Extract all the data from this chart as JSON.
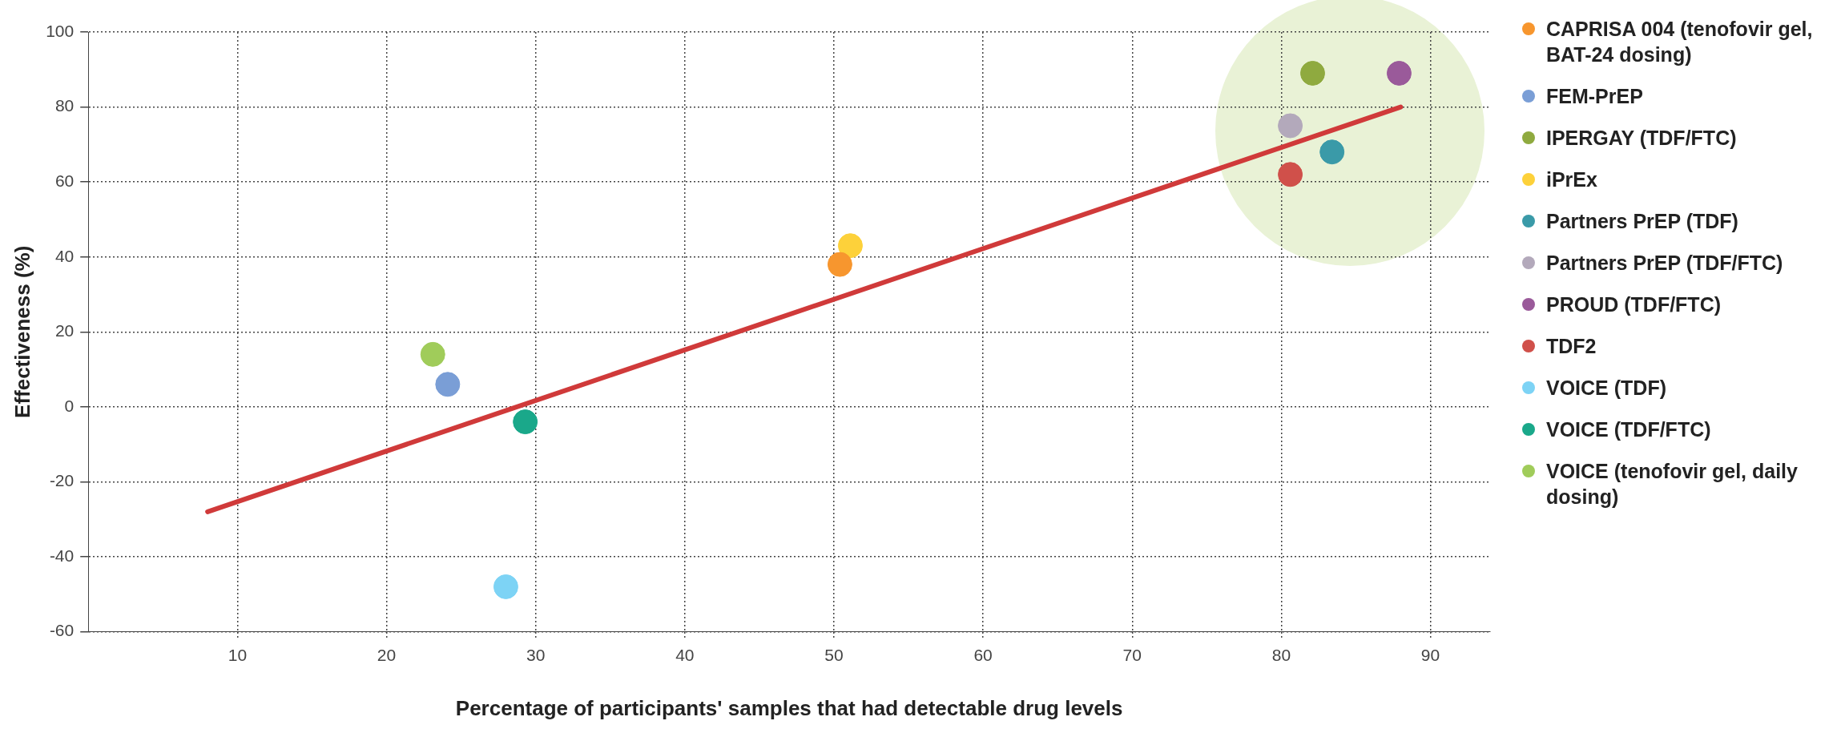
{
  "chart_data": {
    "type": "scatter",
    "xlabel": "Percentage of participants' samples that had detectable drug levels",
    "ylabel": "Effectiveness (%)",
    "xlim": [
      0,
      94
    ],
    "ylim": [
      -60,
      100
    ],
    "xticks": [
      10,
      20,
      30,
      40,
      50,
      60,
      70,
      80,
      90
    ],
    "yticks": [
      -60,
      -40,
      -20,
      0,
      20,
      40,
      60,
      80,
      100
    ],
    "grid": true,
    "legend": "right",
    "marker": "circle",
    "series": [
      {
        "type": "line",
        "marker": "none",
        "color": "#d03a3a",
        "x": [
          8,
          88
        ],
        "values": [
          -28,
          80
        ]
      },
      {
        "name": "CAPRISA 004 (tenofovir gel, BAT-24 dosing)",
        "color": "#f7962e",
        "x": [
          50.4
        ],
        "values": [
          38
        ]
      },
      {
        "name": "FEM-PrEP",
        "color": "#7a9ed6",
        "x": [
          24.1
        ],
        "values": [
          6
        ]
      },
      {
        "name": "IPERGAY (TDF/FTC)",
        "color": "#8faa3f",
        "x": [
          82.1
        ],
        "values": [
          89
        ]
      },
      {
        "name": "iPrEx",
        "color": "#fdd13a",
        "x": [
          51.1
        ],
        "values": [
          43
        ]
      },
      {
        "name": "Partners PrEP (TDF)",
        "color": "#3a9aa8",
        "x": [
          83.4
        ],
        "values": [
          68
        ]
      },
      {
        "name": "Partners PrEP (TDF/FTC)",
        "color": "#b3a9bb",
        "x": [
          80.6
        ],
        "values": [
          75
        ]
      },
      {
        "name": "PROUD (TDF/FTC)",
        "color": "#9a5a9a",
        "x": [
          87.9
        ],
        "values": [
          89
        ]
      },
      {
        "name": "TDF2",
        "color": "#d0504a",
        "x": [
          80.6
        ],
        "values": [
          62
        ]
      },
      {
        "name": "VOICE (TDF)",
        "color": "#7dd3f5",
        "x": [
          28.0
        ],
        "values": [
          -48
        ]
      },
      {
        "name": "VOICE (TDF/FTC)",
        "color": "#1aa88a",
        "x": [
          29.3
        ],
        "values": [
          -4
        ]
      },
      {
        "name": "VOICE (tenofovir gel, daily dosing)",
        "color": "#a0cc5a",
        "x": [
          23.1
        ],
        "values": [
          14
        ]
      }
    ]
  }
}
